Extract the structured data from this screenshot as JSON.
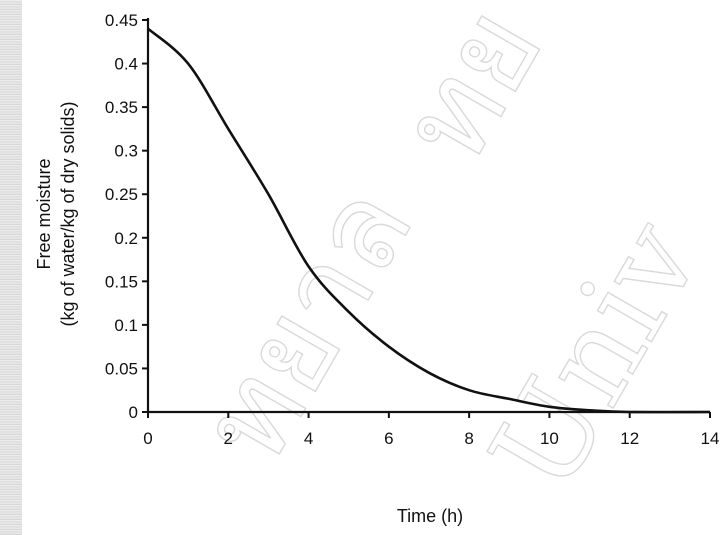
{
  "chart_data": {
    "type": "line",
    "title": "",
    "xlabel": "Time (h)",
    "ylabel_line1": "Free moisture",
    "ylabel_line2": "(kg of water/kg of dry solids)",
    "xlim": [
      0,
      14
    ],
    "ylim": [
      0,
      0.45
    ],
    "x_ticks": [
      0,
      2,
      4,
      6,
      8,
      10,
      12,
      14
    ],
    "y_ticks": [
      0,
      0.05,
      0.1,
      0.15,
      0.2,
      0.25,
      0.3,
      0.35,
      0.4,
      0.45
    ],
    "x_tick_labels": [
      "0",
      "2",
      "4",
      "6",
      "8",
      "10",
      "12",
      "14"
    ],
    "y_tick_labels": [
      "0",
      "0.05",
      "0.1",
      "0.15",
      "0.2",
      "0.25",
      "0.3",
      "0.35",
      "0.4",
      "0.45"
    ],
    "grid": false,
    "line_color": "#111111",
    "series": [
      {
        "x": [
          0,
          1,
          2,
          3,
          4,
          5,
          6,
          7,
          8,
          9,
          10,
          11,
          12,
          14
        ],
        "y": [
          0.44,
          0.4,
          0.325,
          0.25,
          0.167,
          0.115,
          0.075,
          0.045,
          0.025,
          0.015,
          0.006,
          0.002,
          0.0,
          0.0
        ]
      }
    ]
  }
}
